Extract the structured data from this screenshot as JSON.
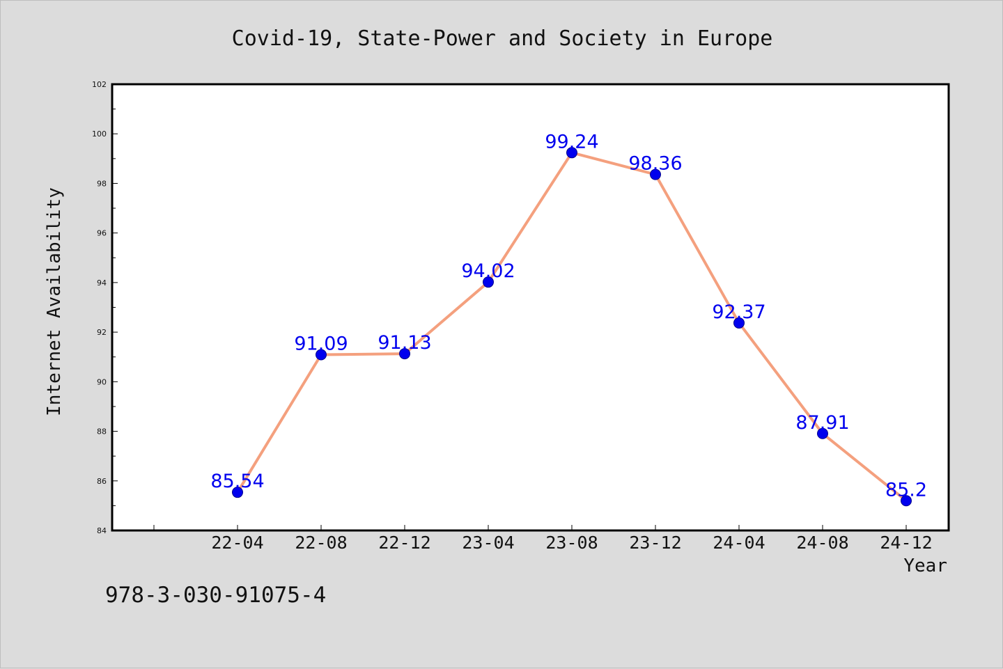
{
  "chart_data": {
    "type": "line",
    "title": "Covid-19, State-Power and Society in Europe",
    "xlabel": "Year",
    "ylabel": "Internet Availability",
    "categories": [
      "22-04",
      "22-08",
      "22-12",
      "23-04",
      "23-08",
      "23-12",
      "24-04",
      "24-08",
      "24-12"
    ],
    "series": [
      {
        "values": [
          85.54,
          91.09,
          91.13,
          94.02,
          99.24,
          98.36,
          92.37,
          87.91,
          85.2
        ]
      }
    ],
    "data_labels": [
      "85.54",
      "91.09",
      "91.13",
      "94.02",
      "99.24",
      "98.36",
      "92.37",
      "87.91",
      "85.2"
    ],
    "ylim": [
      84,
      102
    ],
    "yticks": [
      "84",
      "86",
      "88",
      "90",
      "92",
      "94",
      "96",
      "98",
      "100",
      "102"
    ],
    "grid": false,
    "line_color": "#f4a07e",
    "marker_color": "#0000ee",
    "label_color": "#0000ee"
  },
  "footer": {
    "isbn": "978-3-030-91075-4"
  }
}
